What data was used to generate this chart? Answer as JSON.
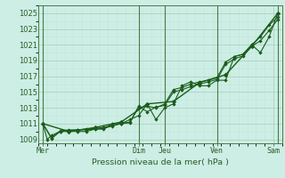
{
  "xlabel": "Pression niveau de la mer( hPa )",
  "background_color": "#cceee4",
  "grid_color_major": "#aaccbb",
  "grid_color_minor": "#c4e4da",
  "line_color": "#1a5c1a",
  "spine_color": "#4a7a4a",
  "tick_color": "#2a5c2a",
  "ylim": [
    1008.5,
    1026.0
  ],
  "yticks": [
    1009,
    1011,
    1013,
    1015,
    1017,
    1019,
    1021,
    1023,
    1025
  ],
  "xlim": [
    0,
    28
  ],
  "day_labels": [
    "Mer",
    "Dim",
    "Jeu",
    "Ven",
    "Sam"
  ],
  "day_positions": [
    0.5,
    11.5,
    14.5,
    20.5,
    27.0
  ],
  "vline_positions": [
    0.5,
    11.5,
    14.5,
    20.5,
    27.5
  ],
  "series1_x": [
    0.5,
    1.0,
    1.5,
    2.5,
    3.5,
    4.5,
    5.5,
    6.5,
    7.5,
    8.5,
    9.5,
    10.5,
    11.5,
    12.5,
    13.5,
    14.5,
    15.5,
    16.5,
    17.5,
    18.5,
    19.5,
    20.5,
    21.5,
    22.5,
    23.5,
    24.5,
    25.5,
    26.5,
    27.5
  ],
  "series1_y": [
    1011.0,
    1009.0,
    1009.5,
    1010.0,
    1010.0,
    1010.0,
    1010.0,
    1010.3,
    1010.3,
    1011.0,
    1011.0,
    1011.5,
    1012.0,
    1013.5,
    1011.5,
    1013.0,
    1013.5,
    1015.8,
    1016.3,
    1015.8,
    1015.8,
    1016.5,
    1016.5,
    1019.5,
    1019.8,
    1021.0,
    1020.0,
    1022.0,
    1025.0
  ],
  "series2_x": [
    0.5,
    1.5,
    2.5,
    3.5,
    4.5,
    5.5,
    6.5,
    7.5,
    8.5,
    9.5,
    10.5,
    11.5,
    12.5,
    13.5,
    14.5,
    15.5,
    16.5,
    17.5,
    18.5,
    19.5,
    20.5,
    21.5,
    22.5,
    23.5,
    24.5,
    25.5,
    26.5,
    27.5
  ],
  "series2_y": [
    1011.0,
    1009.2,
    1010.1,
    1010.2,
    1010.2,
    1010.3,
    1010.4,
    1010.5,
    1010.8,
    1011.0,
    1011.2,
    1013.0,
    1013.2,
    1013.0,
    1013.5,
    1015.3,
    1015.6,
    1016.0,
    1016.3,
    1016.5,
    1016.8,
    1018.8,
    1019.5,
    1019.8,
    1021.0,
    1022.0,
    1023.5,
    1024.5
  ],
  "series3_x": [
    0.5,
    1.5,
    2.5,
    3.5,
    4.5,
    5.5,
    6.5,
    7.5,
    8.5,
    9.5,
    10.5,
    11.5,
    12.5,
    13.5,
    14.5,
    15.5,
    16.5,
    17.5,
    18.5,
    19.5,
    20.5,
    21.5,
    22.5,
    23.5,
    24.5,
    25.5,
    26.5,
    27.5
  ],
  "series3_y": [
    1011.0,
    1009.1,
    1010.0,
    1010.1,
    1010.2,
    1010.2,
    1010.3,
    1010.4,
    1010.7,
    1011.0,
    1011.1,
    1013.2,
    1012.5,
    1013.1,
    1013.3,
    1015.0,
    1015.3,
    1015.7,
    1016.0,
    1016.3,
    1016.6,
    1018.5,
    1019.2,
    1019.6,
    1020.8,
    1021.5,
    1022.8,
    1024.2
  ],
  "series4_x": [
    0.5,
    3.5,
    6.5,
    9.5,
    12.5,
    15.5,
    18.5,
    21.5,
    24.5,
    27.5
  ],
  "series4_y": [
    1011.0,
    1010.0,
    1010.5,
    1011.2,
    1013.5,
    1013.8,
    1016.2,
    1017.2,
    1020.8,
    1025.0
  ]
}
